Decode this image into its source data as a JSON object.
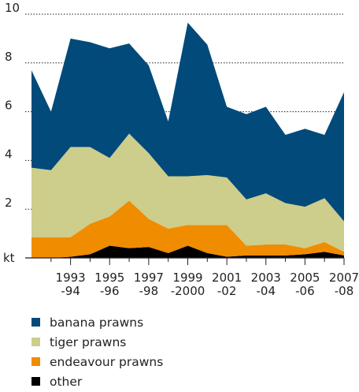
{
  "chart_data": {
    "type": "area",
    "stacked": true,
    "y_unit": "kt",
    "ylim": [
      0,
      10
    ],
    "yticks": [
      2,
      4,
      6,
      8,
      10
    ],
    "grid": "horizontal dotted",
    "x_tick_labels": [
      {
        "line1": "1993",
        "line2": "-94"
      },
      {
        "line1": "1995",
        "line2": "-96"
      },
      {
        "line1": "1997",
        "line2": "-98"
      },
      {
        "line1": "1999",
        "line2": "-2000"
      },
      {
        "line1": "2001",
        "line2": "-02"
      },
      {
        "line1": "2003",
        "line2": "-04"
      },
      {
        "line1": "2005",
        "line2": "-06"
      },
      {
        "line1": "2007",
        "line2": "-08"
      }
    ],
    "x": [
      "1991-92",
      "1992-93",
      "1993-94",
      "1994-95",
      "1995-96",
      "1996-97",
      "1997-98",
      "1998-99",
      "1999-2000",
      "2000-01",
      "2001-02",
      "2002-03",
      "2003-04",
      "2004-05",
      "2005-06",
      "2006-07",
      "2007-08"
    ],
    "series": [
      {
        "name": "other",
        "color": "#000000",
        "values": [
          0.0,
          0.0,
          0.05,
          0.15,
          0.5,
          0.4,
          0.45,
          0.2,
          0.5,
          0.2,
          0.05,
          0.1,
          0.1,
          0.1,
          0.15,
          0.25,
          0.1
        ]
      },
      {
        "name": "endeavour prawns",
        "color": "#f08c00",
        "values": [
          0.85,
          0.85,
          0.8,
          1.25,
          1.2,
          1.95,
          1.15,
          1.0,
          0.85,
          1.15,
          1.3,
          0.4,
          0.45,
          0.45,
          0.25,
          0.4,
          0.15
        ]
      },
      {
        "name": "tiger prawns",
        "color": "#cdcd8c",
        "values": [
          2.85,
          2.75,
          3.7,
          3.15,
          2.4,
          2.75,
          2.7,
          2.15,
          2.0,
          2.05,
          1.95,
          1.9,
          2.1,
          1.7,
          1.7,
          1.8,
          1.25
        ]
      },
      {
        "name": "banana prawns",
        "color": "#014a7a",
        "values": [
          4.0,
          2.4,
          4.45,
          4.3,
          4.5,
          3.7,
          3.6,
          2.25,
          6.3,
          5.35,
          2.9,
          3.5,
          3.55,
          2.8,
          3.2,
          2.6,
          5.3
        ]
      }
    ],
    "legend": {
      "position": "bottom",
      "order": [
        "banana prawns",
        "tiger prawns",
        "endeavour prawns",
        "other"
      ]
    }
  }
}
